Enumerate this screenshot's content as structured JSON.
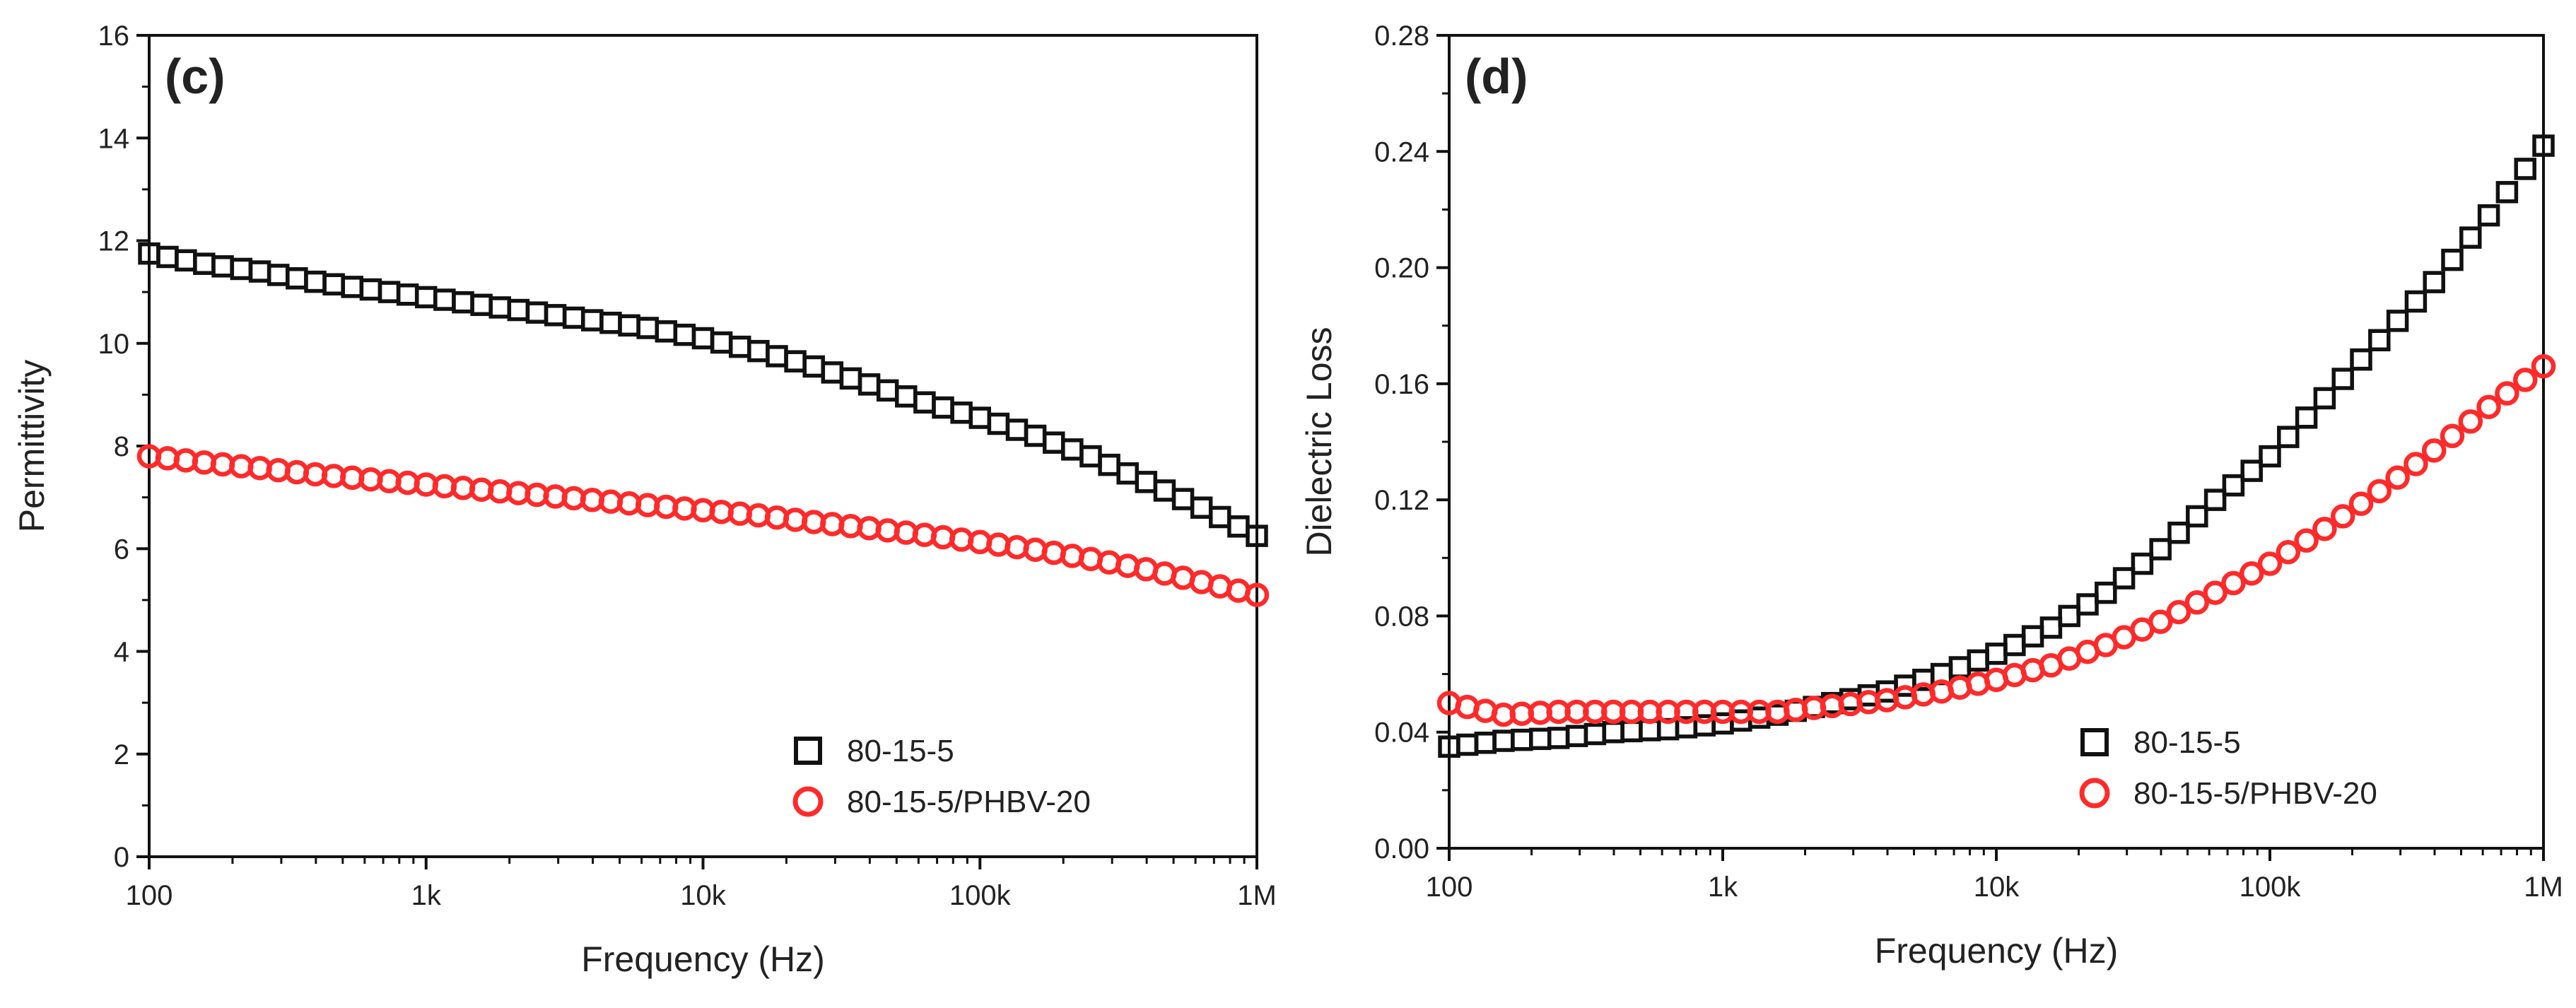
{
  "chart_data": [
    {
      "type": "scatter",
      "panel_label": "(c)",
      "xscale": "log",
      "xlim": [
        100,
        1000000
      ],
      "ylim": [
        0,
        16
      ],
      "xticks": [
        100,
        1000,
        10000,
        100000,
        1000000
      ],
      "xtick_labels": [
        "100",
        "1k",
        "10k",
        "100k",
        "1M"
      ],
      "yticks": [
        0,
        2,
        4,
        6,
        8,
        10,
        12,
        14,
        16
      ],
      "ytick_labels": [
        "0",
        "2",
        "4",
        "6",
        "8",
        "10",
        "12",
        "14",
        "16"
      ],
      "xlabel": "Frequency (Hz)",
      "ylabel": "Permittivity",
      "legend_position": "bottom-right",
      "x": [
        100,
        158,
        251,
        398,
        631,
        1000,
        1585,
        2512,
        3981,
        6310,
        10000,
        15849,
        25119,
        39811,
        63096,
        100000,
        158489,
        251189,
        398107,
        630957,
        1000000
      ],
      "series": [
        {
          "name": "80-15-5",
          "marker": "square",
          "color": "#111111",
          "values": [
            11.75,
            11.55,
            11.4,
            11.2,
            11.05,
            10.9,
            10.75,
            10.6,
            10.45,
            10.3,
            10.1,
            9.85,
            9.55,
            9.2,
            8.85,
            8.55,
            8.2,
            7.8,
            7.3,
            6.8,
            6.25
          ]
        },
        {
          "name": "80-15-5/PHBV-20",
          "marker": "circle",
          "color": "#ff2a2a",
          "values": [
            7.8,
            7.68,
            7.57,
            7.45,
            7.35,
            7.25,
            7.15,
            7.05,
            6.95,
            6.85,
            6.75,
            6.65,
            6.52,
            6.4,
            6.27,
            6.13,
            5.98,
            5.8,
            5.6,
            5.35,
            5.1
          ]
        }
      ]
    },
    {
      "type": "scatter",
      "panel_label": "(d)",
      "xscale": "log",
      "xlim": [
        100,
        1000000
      ],
      "ylim": [
        0,
        0.28
      ],
      "xticks": [
        100,
        1000,
        10000,
        100000,
        1000000
      ],
      "xtick_labels": [
        "100",
        "1k",
        "10k",
        "100k",
        "1M"
      ],
      "yticks": [
        0,
        0.04,
        0.08,
        0.12,
        0.16,
        0.2,
        0.24,
        0.28
      ],
      "ytick_labels": [
        "0.00",
        "0.04",
        "0.08",
        "0.12",
        "0.16",
        "0.20",
        "0.24",
        "0.28"
      ],
      "xlabel": "Frequency (Hz)",
      "ylabel": "Dielectric Loss",
      "legend_position": "bottom-right",
      "x": [
        100,
        158,
        251,
        398,
        631,
        1000,
        1585,
        2512,
        3981,
        6310,
        10000,
        15849,
        25119,
        39811,
        63096,
        100000,
        158489,
        251189,
        398107,
        630957,
        1000000
      ],
      "series": [
        {
          "name": "80-15-5",
          "marker": "square",
          "color": "#111111",
          "values": [
            0.035,
            0.037,
            0.038,
            0.04,
            0.041,
            0.043,
            0.046,
            0.05,
            0.054,
            0.06,
            0.067,
            0.076,
            0.088,
            0.103,
            0.12,
            0.135,
            0.155,
            0.175,
            0.195,
            0.218,
            0.242
          ]
        },
        {
          "name": "80-15-5/PHBV-20",
          "marker": "circle",
          "color": "#ff2a2a",
          "values": [
            0.05,
            0.046,
            0.047,
            0.047,
            0.047,
            0.047,
            0.047,
            0.049,
            0.051,
            0.054,
            0.058,
            0.063,
            0.07,
            0.078,
            0.088,
            0.098,
            0.11,
            0.123,
            0.137,
            0.152,
            0.166
          ]
        }
      ]
    }
  ]
}
